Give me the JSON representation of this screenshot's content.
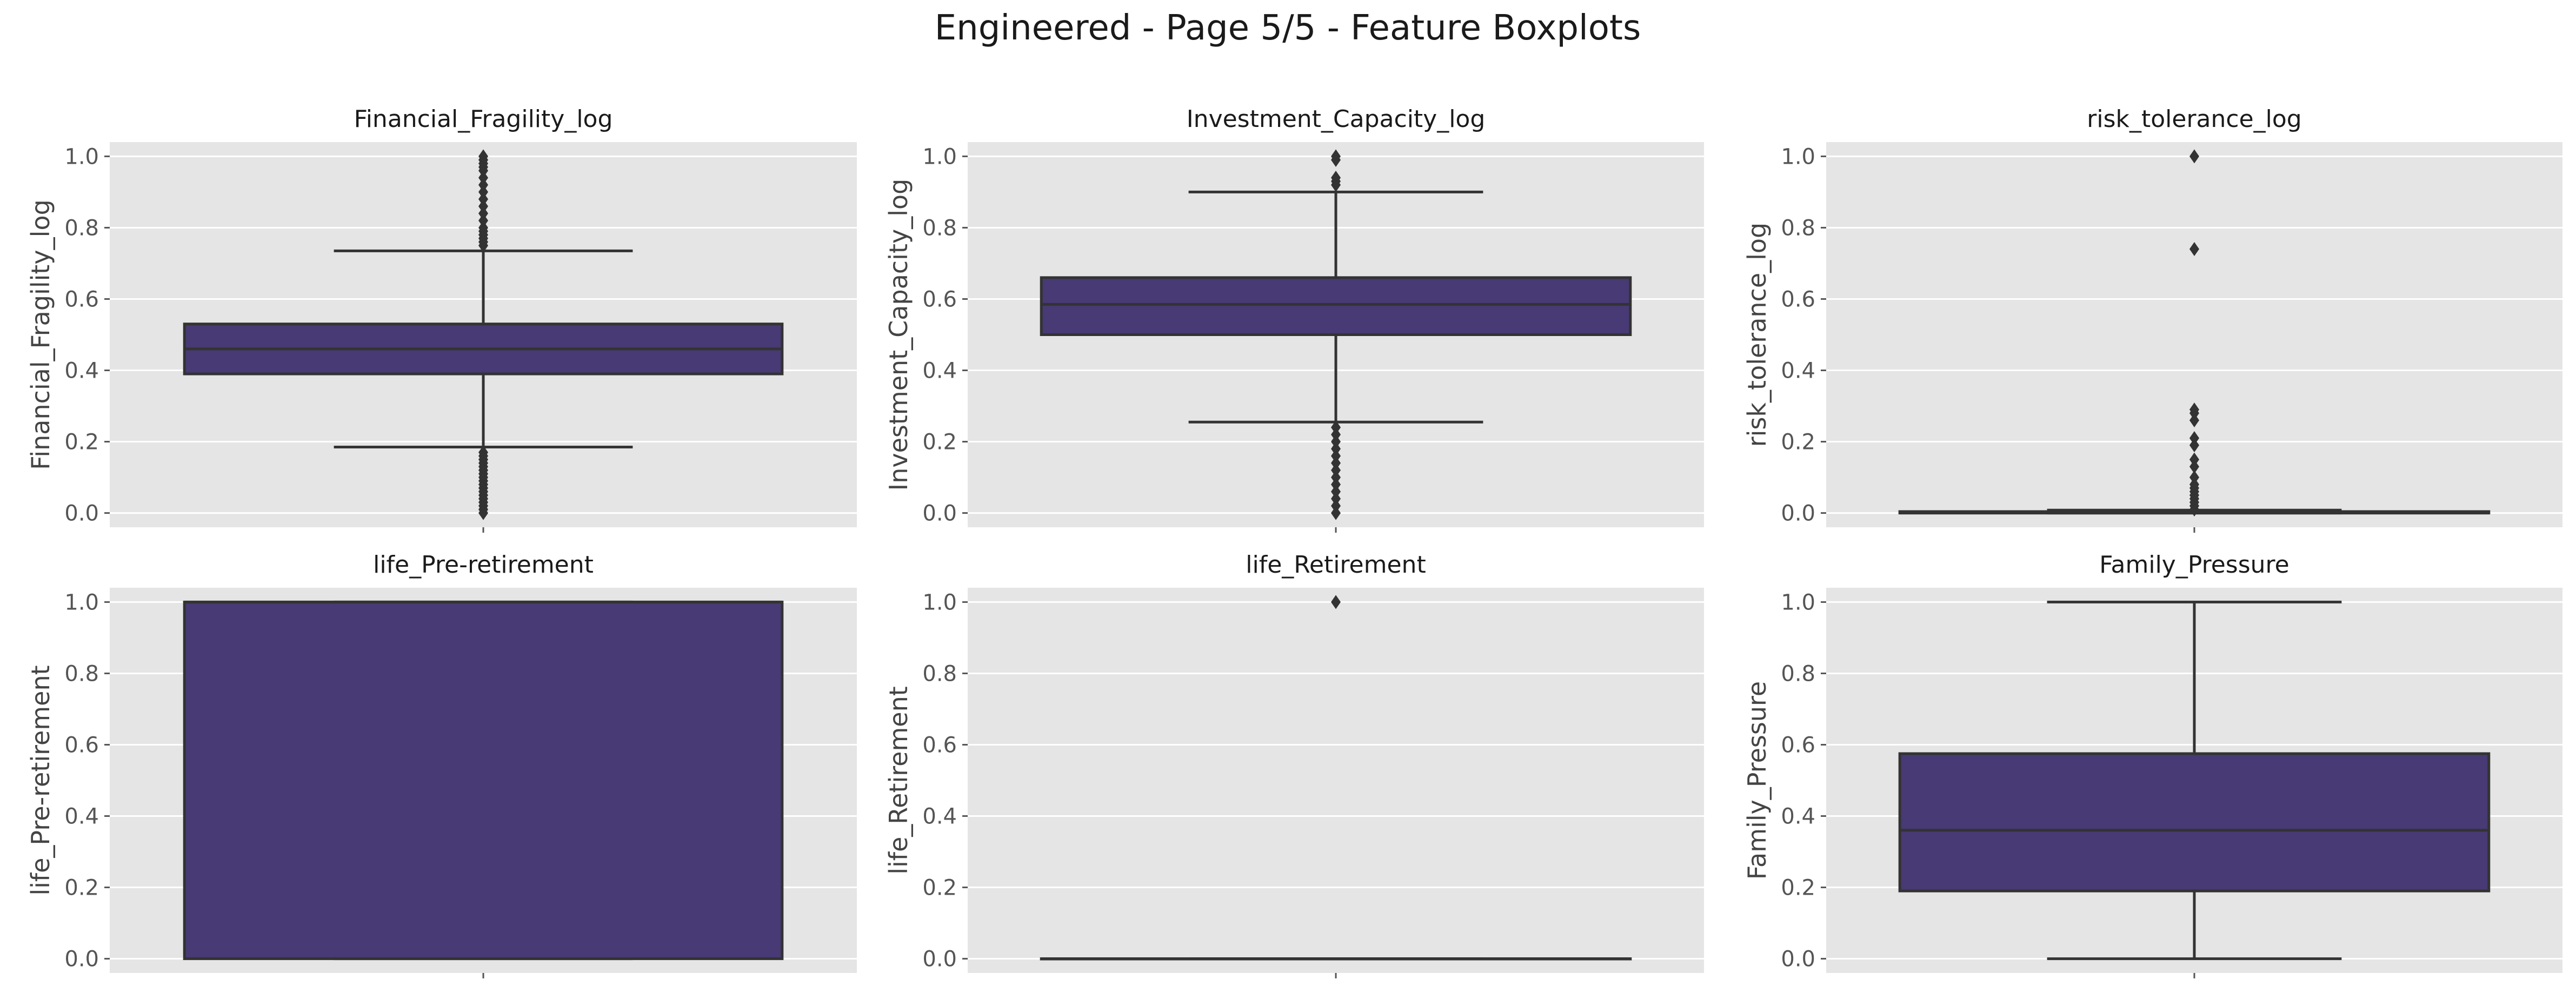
{
  "figure": {
    "title": "Engineered - Page 5/5 - Feature Boxplots",
    "style": {
      "panel_bg": "#e5e5e5",
      "grid": "#ffffff",
      "box_fill": "#483a74",
      "line": "#333333",
      "tick_text": "#555555",
      "label_text": "#444444",
      "title_text": "#1a1a1a"
    }
  },
  "chart_data": [
    {
      "type": "box",
      "title": "Financial_Fragility_log",
      "ylabel": "Financial_Fragility_log",
      "ylim": [
        -0.04,
        1.04
      ],
      "yticks": [
        "0.0",
        "0.2",
        "0.4",
        "0.6",
        "0.8",
        "1.0"
      ],
      "grid": true,
      "box": {
        "q1": 0.39,
        "median": 0.46,
        "q3": 0.53,
        "whisker_low": 0.185,
        "whisker_high": 0.735
      },
      "outliers": [
        0.0,
        0.01,
        0.02,
        0.03,
        0.04,
        0.05,
        0.06,
        0.07,
        0.08,
        0.09,
        0.1,
        0.11,
        0.12,
        0.13,
        0.14,
        0.15,
        0.16,
        0.17,
        0.75,
        0.76,
        0.77,
        0.78,
        0.79,
        0.8,
        0.82,
        0.84,
        0.86,
        0.88,
        0.9,
        0.92,
        0.94,
        0.96,
        0.97,
        0.98,
        0.99,
        1.0
      ]
    },
    {
      "type": "box",
      "title": "Investment_Capacity_log",
      "ylabel": "Investment_Capacity_log",
      "ylim": [
        -0.04,
        1.04
      ],
      "yticks": [
        "0.0",
        "0.2",
        "0.4",
        "0.6",
        "0.8",
        "1.0"
      ],
      "grid": true,
      "box": {
        "q1": 0.5,
        "median": 0.585,
        "q3": 0.66,
        "whisker_low": 0.255,
        "whisker_high": 0.9
      },
      "outliers": [
        0.0,
        0.02,
        0.04,
        0.06,
        0.08,
        0.1,
        0.12,
        0.14,
        0.16,
        0.18,
        0.2,
        0.22,
        0.24,
        0.92,
        0.93,
        0.94,
        0.99,
        1.0
      ]
    },
    {
      "type": "box",
      "title": "risk_tolerance_log",
      "ylabel": "risk_tolerance_log",
      "ylim": [
        -0.04,
        1.04
      ],
      "yticks": [
        "0.0",
        "0.2",
        "0.4",
        "0.6",
        "0.8",
        "1.0"
      ],
      "grid": true,
      "box": {
        "q1": 0.0,
        "median": 0.0,
        "q3": 0.004,
        "whisker_low": 0.0,
        "whisker_high": 0.008
      },
      "outliers": [
        0.01,
        0.02,
        0.03,
        0.04,
        0.05,
        0.06,
        0.07,
        0.08,
        0.1,
        0.13,
        0.15,
        0.19,
        0.21,
        0.26,
        0.28,
        0.29,
        0.74,
        1.0
      ]
    },
    {
      "type": "box",
      "title": "life_Pre-retirement",
      "ylabel": "life_Pre-retirement",
      "ylim": [
        -0.04,
        1.04
      ],
      "yticks": [
        "0.0",
        "0.2",
        "0.4",
        "0.6",
        "0.8",
        "1.0"
      ],
      "grid": true,
      "box": {
        "q1": 0.0,
        "median": 1.0,
        "q3": 1.0,
        "whisker_low": 0.0,
        "whisker_high": 1.0
      },
      "outliers": []
    },
    {
      "type": "box",
      "title": "life_Retirement",
      "ylabel": "life_Retirement",
      "ylim": [
        -0.04,
        1.04
      ],
      "yticks": [
        "0.0",
        "0.2",
        "0.4",
        "0.6",
        "0.8",
        "1.0"
      ],
      "grid": true,
      "box": {
        "q1": 0.0,
        "median": 0.0,
        "q3": 0.0,
        "whisker_low": 0.0,
        "whisker_high": 0.0
      },
      "outliers": [
        1.0
      ]
    },
    {
      "type": "box",
      "title": "Family_Pressure",
      "ylabel": "Family_Pressure",
      "ylim": [
        -0.04,
        1.04
      ],
      "yticks": [
        "0.0",
        "0.2",
        "0.4",
        "0.6",
        "0.8",
        "1.0"
      ],
      "grid": true,
      "box": {
        "q1": 0.19,
        "median": 0.36,
        "q3": 0.575,
        "whisker_low": 0.0,
        "whisker_high": 1.0
      },
      "outliers": []
    }
  ]
}
